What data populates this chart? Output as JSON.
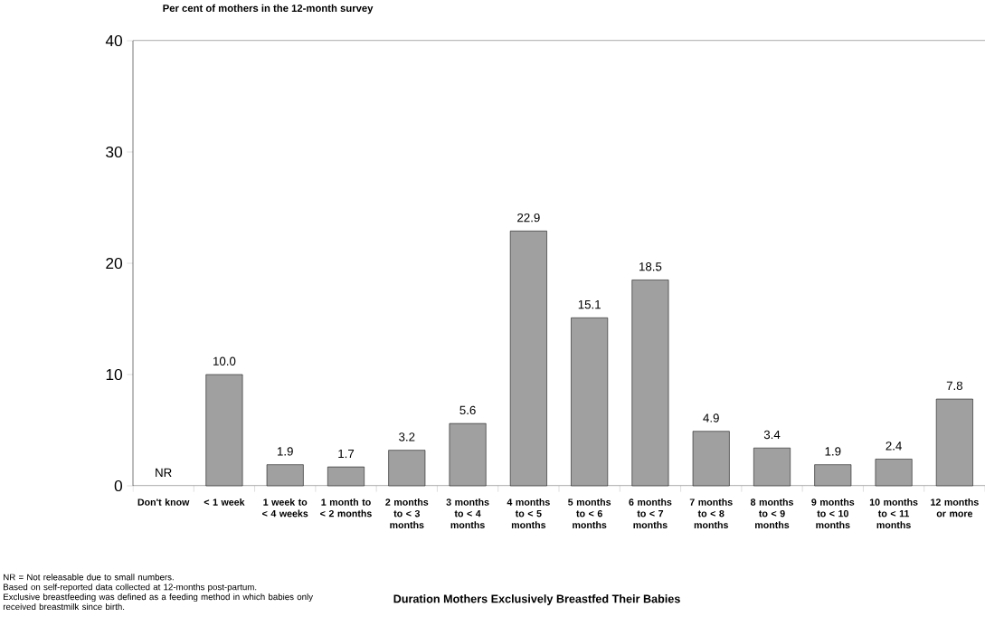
{
  "chart_data": {
    "type": "bar",
    "ylabel": "Per cent of mothers in the 12-month survey",
    "categories": [
      "Don't know",
      "< 1 week",
      "1 week to < 4 weeks",
      "1 month to < 2 months",
      "2 months to < 3 months",
      "3 months to < 4 months",
      "4 months to < 5 months",
      "5 months to < 6 months",
      "6 months to < 7 months",
      "7 months to < 8 months",
      "8 months to < 9 months",
      "9 months to < 10 months",
      "10 months to < 11 months",
      "12 months or more"
    ],
    "values": [
      null,
      10.0,
      1.9,
      1.7,
      3.2,
      5.6,
      22.9,
      15.1,
      18.5,
      4.9,
      3.4,
      1.9,
      2.4,
      7.8
    ],
    "value_labels": [
      "NR",
      "10.0",
      "1.9",
      "1.7",
      "3.2",
      "5.6",
      "22.9",
      "15.1",
      "18.5",
      "4.9",
      "3.4",
      "1.9",
      "2.4",
      "7.8"
    ],
    "color": "#a0a0a0",
    "ylim": [
      0,
      40
    ],
    "yticks": [
      0,
      10,
      20,
      30,
      40
    ],
    "grid": false,
    "annotations": [
      "Duration Mothers Exclusively Breastfed Their Babies",
      "NR = Not releasable due to small numbers.",
      "Based on self-reported data collected at 12-months post-partum.",
      "Exclusive breastfeeding was defined as a feeding method in which babies only received breastmilk since birth."
    ]
  }
}
